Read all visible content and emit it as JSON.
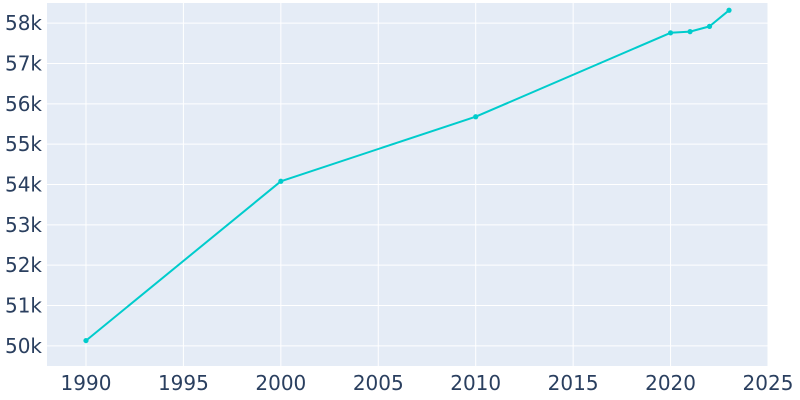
{
  "chart_data": {
    "type": "line",
    "title": "",
    "xlabel": "",
    "ylabel": "",
    "xlim": [
      1988,
      2025
    ],
    "ylim": [
      49500,
      58500
    ],
    "x_ticks": [
      1990,
      1995,
      2000,
      2005,
      2010,
      2015,
      2020,
      2025
    ],
    "x_tick_labels": [
      "1990",
      "1995",
      "2000",
      "2005",
      "2010",
      "2015",
      "2020",
      "2025"
    ],
    "y_ticks": [
      50000,
      51000,
      52000,
      53000,
      54000,
      55000,
      56000,
      57000,
      58000
    ],
    "y_tick_labels": [
      "50k",
      "51k",
      "52k",
      "53k",
      "54k",
      "55k",
      "56k",
      "57k",
      "58k"
    ],
    "grid": true,
    "legend": "none",
    "colors": {
      "line": "#00cccc",
      "plot_bg": "#e5ecf6",
      "grid": "#ffffff",
      "text": "#2a3f5f"
    },
    "series": [
      {
        "x": [
          1990,
          2000,
          2010,
          2020,
          2021,
          2022,
          2023
        ],
        "values": [
          50130,
          54080,
          55680,
          57760,
          57790,
          57920,
          58320
        ]
      }
    ]
  }
}
